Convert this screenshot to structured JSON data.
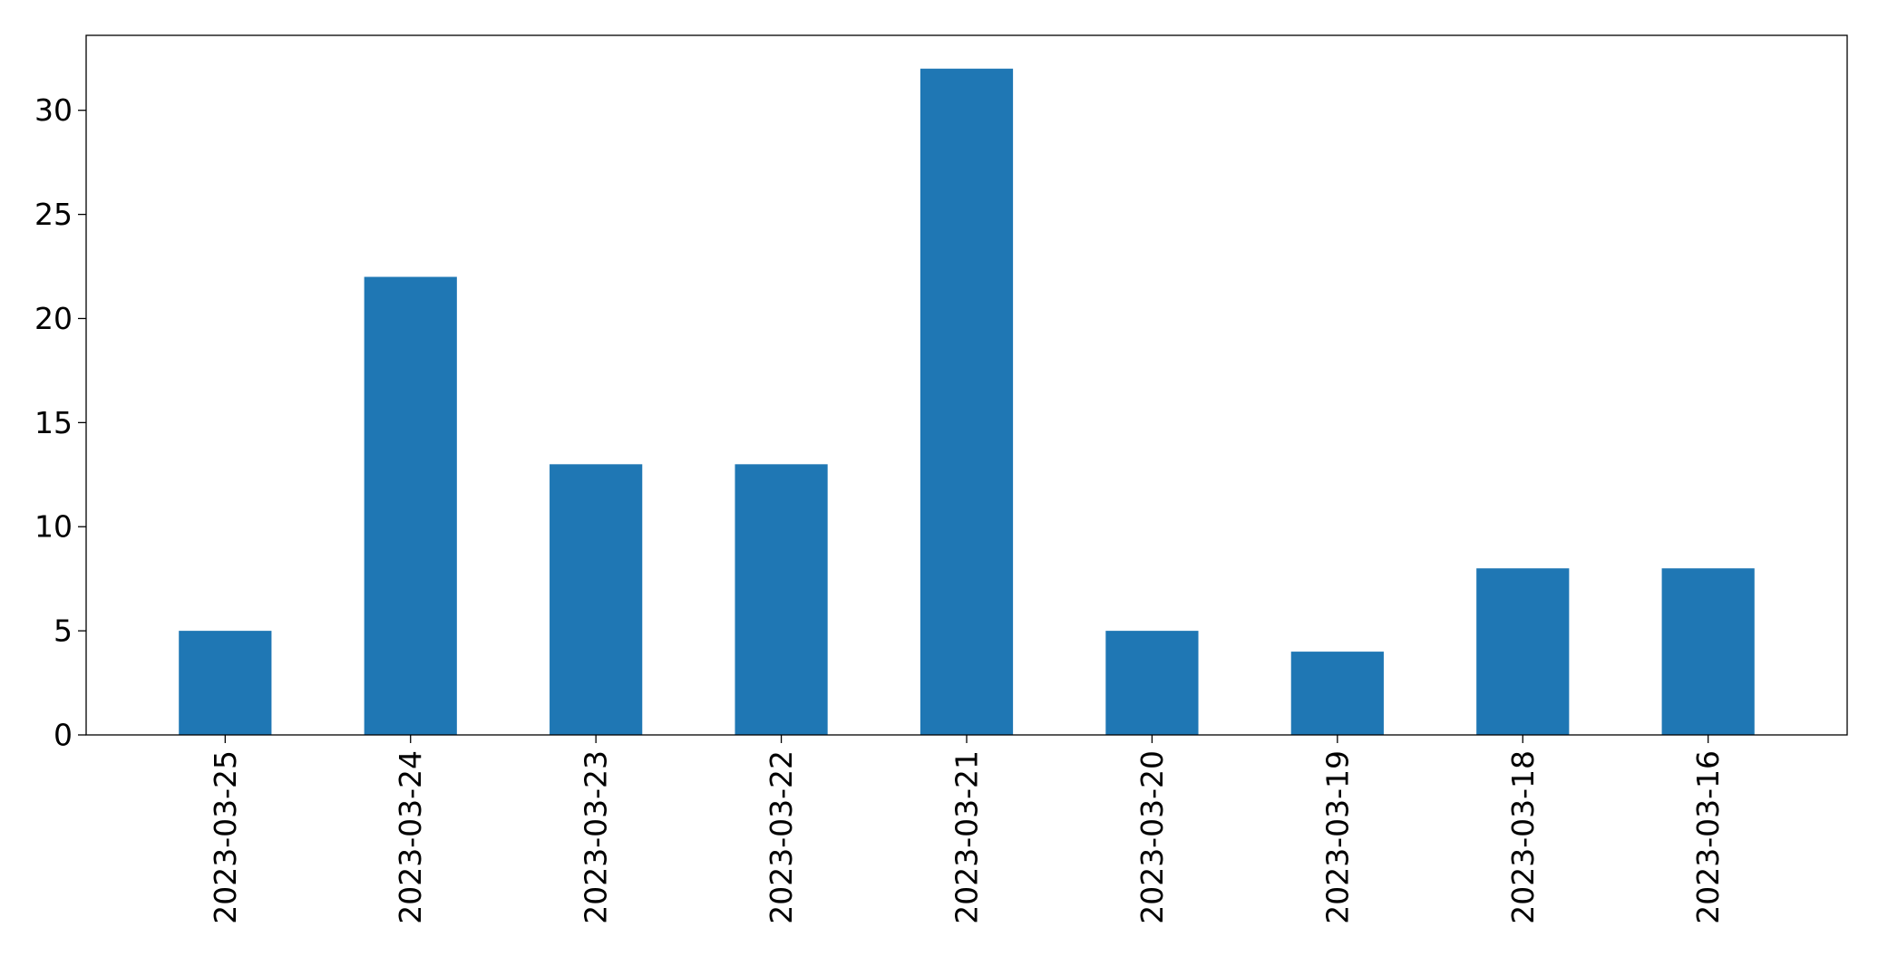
{
  "chart_data": {
    "type": "bar",
    "title": "",
    "xlabel": "",
    "ylabel": "",
    "categories": [
      "2023-03-25",
      "2023-03-24",
      "2023-03-23",
      "2023-03-22",
      "2023-03-21",
      "2023-03-20",
      "2023-03-19",
      "2023-03-18",
      "2023-03-16"
    ],
    "values": [
      5,
      22,
      13,
      13,
      32,
      5,
      4,
      8,
      8
    ],
    "ylim": [
      0,
      33.6
    ],
    "yticks": [
      0,
      5,
      10,
      15,
      20,
      25,
      30
    ],
    "grid": false,
    "legend": "none",
    "bar_color": "#1f77b4"
  }
}
